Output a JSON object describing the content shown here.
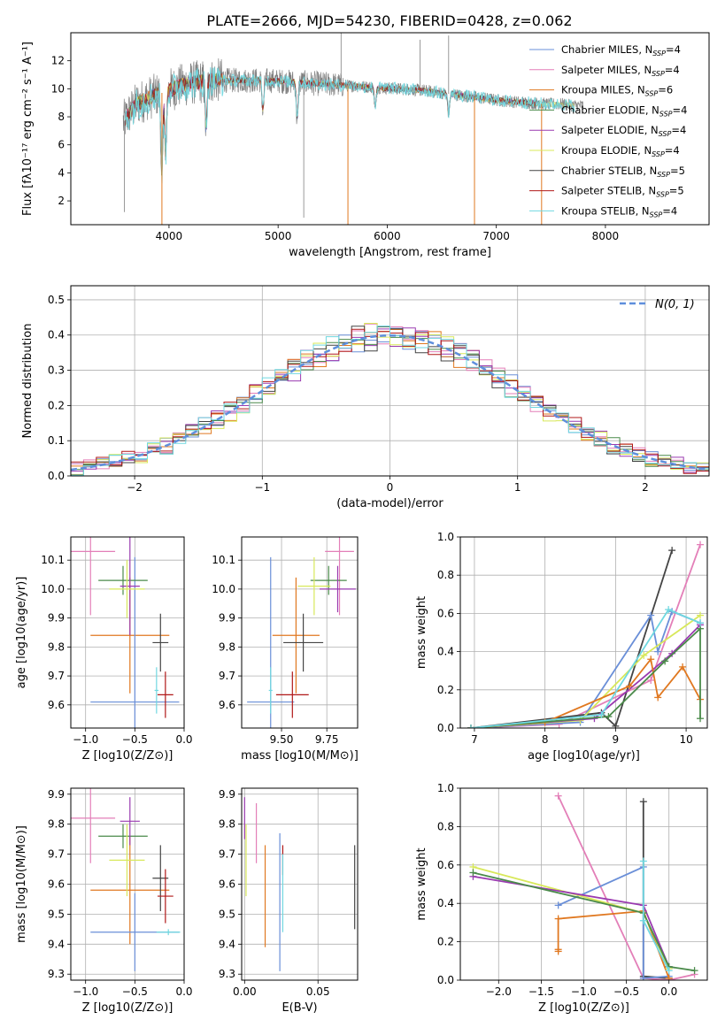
{
  "figure": {
    "title": "PLATE=2666, MJD=54230, FIBERID=0428, z=0.062"
  },
  "colors": {
    "chabrier_miles": "#6a8fd8",
    "salpeter_miles": "#e37fb8",
    "kroupa_miles": "#e07820",
    "chabrier_elodie": "#4a8a4a",
    "salpeter_elodie": "#9a3ab0",
    "kroupa_elodie": "#d8e85a",
    "chabrier_stelib": "#444444",
    "salpeter_stelib": "#b01818",
    "kroupa_stelib": "#70d8e0",
    "data_spectrum": "#808080",
    "normal_curve": "#5f8fdc",
    "grid": "#b0b0b0"
  },
  "chart_data": [
    {
      "id": "spectrum",
      "type": "line",
      "title": "PLATE=2666, MJD=54230, FIBERID=0428, z=0.062",
      "xlabel": "wavelength [Angstrom, rest frame]",
      "ylabel": "Flux [fλ10⁻¹⁷ erg cm⁻² s⁻¹ A⁻¹]",
      "xlim": [
        3100,
        8950
      ],
      "ylim": [
        0.3,
        14
      ],
      "xticks": [
        4000,
        5000,
        6000,
        7000,
        8000
      ],
      "yticks": [
        2,
        4,
        6,
        8,
        10,
        12
      ],
      "grid": false,
      "legend_position": "top-right",
      "legend": [
        "Chabrier MILES, N_SSP=4",
        "Salpeter MILES, N_SSP=4",
        "Kroupa MILES, N_SSP=6",
        "Chabrier ELODIE, N_SSP=4",
        "Salpeter ELODIE, N_SSP=4",
        "Kroupa ELODIE, N_SSP=4",
        "Chabrier STELIB, N_SSP=5",
        "Salpeter STELIB, N_SSP=5",
        "Kroupa STELIB, N_SSP=4"
      ],
      "continuum_x": [
        3580,
        3650,
        3700,
        3800,
        3900,
        4000,
        4100,
        4200,
        4300,
        4400,
        4500,
        4700,
        4900,
        5100,
        5300,
        5500,
        5700,
        5900,
        6100,
        6300,
        6500,
        6700,
        6900,
        7100,
        7300,
        7500,
        7600,
        7700,
        7800
      ],
      "continuum_y": [
        7.6,
        8.4,
        8.9,
        9.3,
        9.6,
        9.9,
        10.2,
        10.4,
        10.5,
        10.6,
        10.6,
        10.6,
        10.6,
        10.5,
        10.4,
        10.3,
        10.2,
        10.1,
        10.0,
        9.9,
        9.7,
        9.5,
        9.3,
        9.1,
        9.0,
        8.9,
        8.9,
        8.8,
        8.8
      ],
      "absorption_lines": [
        {
          "x": 3934,
          "y": 3.0
        },
        {
          "x": 3969,
          "y": 4.8
        },
        {
          "x": 4340,
          "y": 6.8
        },
        {
          "x": 4861,
          "y": 8.3
        },
        {
          "x": 5175,
          "y": 7.6
        },
        {
          "x": 5890,
          "y": 8.6
        },
        {
          "x": 6563,
          "y": 8.2
        }
      ],
      "data_spikes": [
        {
          "x": 3590,
          "y": 1.2
        },
        {
          "x": 5235,
          "y": 0.8
        },
        {
          "x": 5577,
          "y": 14.0
        },
        {
          "x": 6300,
          "y": 13.5
        },
        {
          "x": 6563,
          "y": 13.8
        }
      ],
      "model_spikes": [
        {
          "x": 3935,
          "y": 0.3
        },
        {
          "x": 5640,
          "y": 0.3
        },
        {
          "x": 6800,
          "y": 0.3
        },
        {
          "x": 7415,
          "y": 0.3
        }
      ]
    },
    {
      "id": "residuals",
      "type": "line",
      "xlabel": "(data-model)/error",
      "ylabel": "Normed distribution",
      "xlim": [
        -2.5,
        2.5
      ],
      "ylim": [
        0,
        0.54
      ],
      "xticks": [
        -2,
        -1,
        0,
        1,
        2
      ],
      "yticks": [
        0.0,
        0.1,
        0.2,
        0.3,
        0.4,
        0.5
      ],
      "grid": true,
      "legend_position": "top-right",
      "normal_label": "N(0, 1)",
      "bin_edges_start": -2.5,
      "bin_width": 0.1,
      "series_noise_amplitude": 0.05
    },
    {
      "id": "age-vs-Z",
      "type": "scatter",
      "xlabel": "Z [log10(Z/Z⊙)]",
      "ylabel": "age  [log10(age/yr)]",
      "xlim": [
        -1.15,
        0.0
      ],
      "ylim": [
        9.52,
        10.18
      ],
      "xticks": [
        -1.0,
        -0.5,
        0.0
      ],
      "yticks": [
        9.6,
        9.7,
        9.8,
        9.9,
        10.0,
        10.1
      ],
      "grid": true,
      "errorbars": [
        {
          "color": "salpeter_miles",
          "x": -0.95,
          "xerr": 0.25,
          "y": 10.13,
          "yerr": 0.22
        },
        {
          "color": "kroupa_miles",
          "x": -0.55,
          "xerr": 0.4,
          "y": 9.84,
          "yerr": 0.2
        },
        {
          "color": "chabrier_miles",
          "x": -0.5,
          "xerr": 0.45,
          "y": 9.61,
          "yerr": 0.5
        },
        {
          "color": "chabrier_elodie",
          "x": -0.62,
          "xerr": 0.25,
          "y": 10.03,
          "yerr": 0.05
        },
        {
          "color": "salpeter_elodie",
          "x": -0.55,
          "xerr": 0.1,
          "y": 10.01,
          "yerr": 0.17
        },
        {
          "color": "kroupa_elodie",
          "x": -0.58,
          "xerr": 0.18,
          "y": 10.0,
          "yerr": 0.1
        },
        {
          "color": "chabrier_stelib",
          "x": -0.24,
          "xerr": 0.08,
          "y": 9.815,
          "yerr": 0.1
        },
        {
          "color": "salpeter_stelib",
          "x": -0.19,
          "xerr": 0.08,
          "y": 9.635,
          "yerr": 0.08
        },
        {
          "color": "kroupa_stelib",
          "x": -0.28,
          "xerr": 0.02,
          "y": 9.65,
          "yerr": 0.08
        }
      ]
    },
    {
      "id": "age-vs-mass",
      "type": "scatter",
      "xlabel": "mass [log10(M/M⊙)]",
      "ylabel": "",
      "xlim": [
        9.28,
        9.92
      ],
      "ylim": [
        9.52,
        10.18
      ],
      "xticks": [
        9.5,
        9.75
      ],
      "yticks": [
        9.6,
        9.7,
        9.8,
        9.9,
        10.0,
        10.1
      ],
      "grid": true,
      "errorbars": [
        {
          "color": "salpeter_miles",
          "x": 9.82,
          "xerr": 0.08,
          "y": 10.13,
          "yerr": 0.22
        },
        {
          "color": "kroupa_miles",
          "x": 9.58,
          "xerr": 0.13,
          "y": 9.84,
          "yerr": 0.2
        },
        {
          "color": "chabrier_miles",
          "x": 9.44,
          "xerr": 0.13,
          "y": 9.61,
          "yerr": 0.5
        },
        {
          "color": "chabrier_elodie",
          "x": 9.76,
          "xerr": 0.1,
          "y": 10.03,
          "yerr": 0.05
        },
        {
          "color": "salpeter_elodie",
          "x": 9.81,
          "xerr": 0.1,
          "y": 10.0,
          "yerr": 0.08
        },
        {
          "color": "kroupa_elodie",
          "x": 9.68,
          "xerr": 0.09,
          "y": 10.01,
          "yerr": 0.1
        },
        {
          "color": "chabrier_stelib",
          "x": 9.62,
          "xerr": 0.11,
          "y": 9.815,
          "yerr": 0.1
        },
        {
          "color": "salpeter_stelib",
          "x": 9.56,
          "xerr": 0.09,
          "y": 9.635,
          "yerr": 0.08
        },
        {
          "color": "kroupa_stelib",
          "x": 9.44,
          "xerr": 0.01,
          "y": 9.65,
          "yerr": 0.08
        }
      ]
    },
    {
      "id": "massweight-vs-age",
      "type": "line",
      "xlabel": "age  [log10(age/yr)]",
      "ylabel": "mass weight",
      "xlim": [
        6.8,
        10.3
      ],
      "ylim": [
        0,
        1.0
      ],
      "xticks": [
        7,
        8,
        9,
        10
      ],
      "yticks": [
        0.0,
        0.2,
        0.4,
        0.6,
        0.8,
        1.0
      ],
      "grid": true,
      "series": [
        {
          "color": "salpeter_miles",
          "x": [
            6.95,
            8.2,
            9.5,
            10.2
          ],
          "y": [
            0.0,
            0.02,
            0.25,
            0.96
          ]
        },
        {
          "color": "chabrier_stelib",
          "x": [
            6.95,
            8.8,
            9.0,
            9.8
          ],
          "y": [
            0.0,
            0.08,
            0.01,
            0.93
          ]
        },
        {
          "color": "chabrier_miles",
          "x": [
            6.95,
            8.5,
            9.5,
            9.6,
            9.8,
            10.2
          ],
          "y": [
            0.0,
            0.03,
            0.59,
            0.4,
            0.61,
            0.55
          ]
        },
        {
          "color": "kroupa_elodie",
          "x": [
            6.95,
            8.5,
            9.4,
            10.2
          ],
          "y": [
            0.0,
            0.04,
            0.38,
            0.59
          ]
        },
        {
          "color": "salpeter_elodie",
          "x": [
            6.95,
            8.7,
            9.8,
            10.2
          ],
          "y": [
            0.0,
            0.05,
            0.39,
            0.54
          ]
        },
        {
          "color": "kroupa_miles",
          "x": [
            6.95,
            8.0,
            9.2,
            9.5,
            9.6,
            9.95,
            10.2
          ],
          "y": [
            0.0,
            0.03,
            0.22,
            0.36,
            0.16,
            0.32,
            0.15
          ]
        },
        {
          "color": "chabrier_elodie",
          "x": [
            6.95,
            8.9,
            9.7,
            10.2,
            10.2
          ],
          "y": [
            0.0,
            0.06,
            0.35,
            0.52,
            0.05
          ]
        },
        {
          "color": "kroupa_stelib",
          "x": [
            6.95,
            8.8,
            9.75,
            10.2
          ],
          "y": [
            0.0,
            0.07,
            0.62,
            0.55
          ]
        }
      ]
    },
    {
      "id": "mass-vs-Z",
      "type": "scatter",
      "xlabel": "Z [log10(Z/Z⊙)]",
      "ylabel": "mass [log10(M/M⊙)]",
      "xlim": [
        -1.15,
        0.0
      ],
      "ylim": [
        9.28,
        9.92
      ],
      "xticks": [
        -1.0,
        -0.5,
        0.0
      ],
      "yticks": [
        9.3,
        9.4,
        9.5,
        9.6,
        9.7,
        9.8,
        9.9
      ],
      "grid": true,
      "errorbars": [
        {
          "color": "salpeter_miles",
          "x": -0.95,
          "xerr": 0.25,
          "y": 9.82,
          "yerr": 0.15
        },
        {
          "color": "kroupa_miles",
          "x": -0.55,
          "xerr": 0.4,
          "y": 9.58,
          "yerr": 0.18
        },
        {
          "color": "chabrier_miles",
          "x": -0.5,
          "xerr": 0.45,
          "y": 9.44,
          "yerr": 0.13
        },
        {
          "color": "chabrier_elodie",
          "x": -0.62,
          "xerr": 0.25,
          "y": 9.76,
          "yerr": 0.04
        },
        {
          "color": "salpeter_elodie",
          "x": -0.55,
          "xerr": 0.1,
          "y": 9.81,
          "yerr": 0.08
        },
        {
          "color": "kroupa_elodie",
          "x": -0.58,
          "xerr": 0.18,
          "y": 9.68,
          "yerr": 0.12
        },
        {
          "color": "chabrier_stelib",
          "x": -0.24,
          "xerr": 0.08,
          "y": 9.62,
          "yerr": 0.11
        },
        {
          "color": "salpeter_stelib",
          "x": -0.19,
          "xerr": 0.08,
          "y": 9.56,
          "yerr": 0.09
        },
        {
          "color": "kroupa_stelib",
          "x": -0.16,
          "xerr": 0.12,
          "y": 9.44,
          "yerr": 0.01
        }
      ]
    },
    {
      "id": "mass-vs-ebv",
      "type": "scatter",
      "xlabel": "E(B-V)",
      "ylabel": "",
      "xlim": [
        -0.002,
        0.077
      ],
      "ylim": [
        9.28,
        9.92
      ],
      "xticks": [
        0.0,
        0.05
      ],
      "yticks": [
        9.3,
        9.4,
        9.5,
        9.6,
        9.7,
        9.8,
        9.9
      ],
      "grid": true,
      "errorbars": [
        {
          "color": "salpeter_elodie",
          "x": 0.0,
          "xerr": 0.0,
          "y": 9.82,
          "yerr": 0.07
        },
        {
          "color": "kroupa_elodie",
          "x": 0.001,
          "xerr": 0.0,
          "y": 9.68,
          "yerr": 0.12
        },
        {
          "color": "salpeter_miles",
          "x": 0.008,
          "xerr": 0.0,
          "y": 9.77,
          "yerr": 0.1
        },
        {
          "color": "kroupa_miles",
          "x": 0.014,
          "xerr": 0.0,
          "y": 9.56,
          "yerr": 0.17
        },
        {
          "color": "chabrier_miles",
          "x": 0.024,
          "xerr": 0.0,
          "y": 9.54,
          "yerr": 0.23
        },
        {
          "color": "salpeter_stelib",
          "x": 0.026,
          "xerr": 0.0,
          "y": 9.68,
          "yerr": 0.05
        },
        {
          "color": "kroupa_stelib",
          "x": 0.026,
          "xerr": 0.0,
          "y": 9.57,
          "yerr": 0.13
        },
        {
          "color": "chabrier_stelib",
          "x": 0.075,
          "xerr": 0.0,
          "y": 9.59,
          "yerr": 0.14
        }
      ]
    },
    {
      "id": "massweight-vs-Z",
      "type": "line",
      "xlabel": "Z [log10(Z/Z⊙)]",
      "ylabel": "mass weight",
      "xlim": [
        -2.45,
        0.45
      ],
      "ylim": [
        0,
        1.0
      ],
      "xticks": [
        -2.0,
        -1.5,
        -1.0,
        -0.5,
        0.0
      ],
      "yticks": [
        0.0,
        0.2,
        0.4,
        0.6,
        0.8,
        1.0
      ],
      "grid": true,
      "series": [
        {
          "color": "salpeter_miles",
          "x": [
            -1.3,
            -0.3,
            0.0,
            0.3
          ],
          "y": [
            0.96,
            0.01,
            0.0,
            0.03
          ]
        },
        {
          "color": "chabrier_stelib",
          "x": [
            -0.3,
            -0.3,
            0.0
          ],
          "y": [
            0.93,
            0.02,
            0.01
          ]
        },
        {
          "color": "chabrier_miles",
          "x": [
            -1.3,
            -0.3,
            -0.3,
            0.0
          ],
          "y": [
            0.39,
            0.59,
            0.01,
            0.02
          ]
        },
        {
          "color": "kroupa_miles",
          "x": [
            -1.3,
            -1.3,
            -1.3,
            -0.3,
            0.0
          ],
          "y": [
            0.15,
            0.16,
            0.32,
            0.36,
            0.01
          ]
        },
        {
          "color": "kroupa_elodie",
          "x": [
            -2.3,
            -0.3,
            0.0
          ],
          "y": [
            0.59,
            0.35,
            0.06
          ]
        },
        {
          "color": "salpeter_elodie",
          "x": [
            -2.3,
            -0.3,
            0.0
          ],
          "y": [
            0.54,
            0.39,
            0.07
          ]
        },
        {
          "color": "chabrier_elodie",
          "x": [
            -2.3,
            -0.3,
            0.0,
            0.3
          ],
          "y": [
            0.56,
            0.35,
            0.07,
            0.05
          ]
        },
        {
          "color": "kroupa_stelib",
          "x": [
            -0.3,
            -0.3,
            0.0
          ],
          "y": [
            0.62,
            0.31,
            0.05
          ]
        }
      ]
    }
  ]
}
